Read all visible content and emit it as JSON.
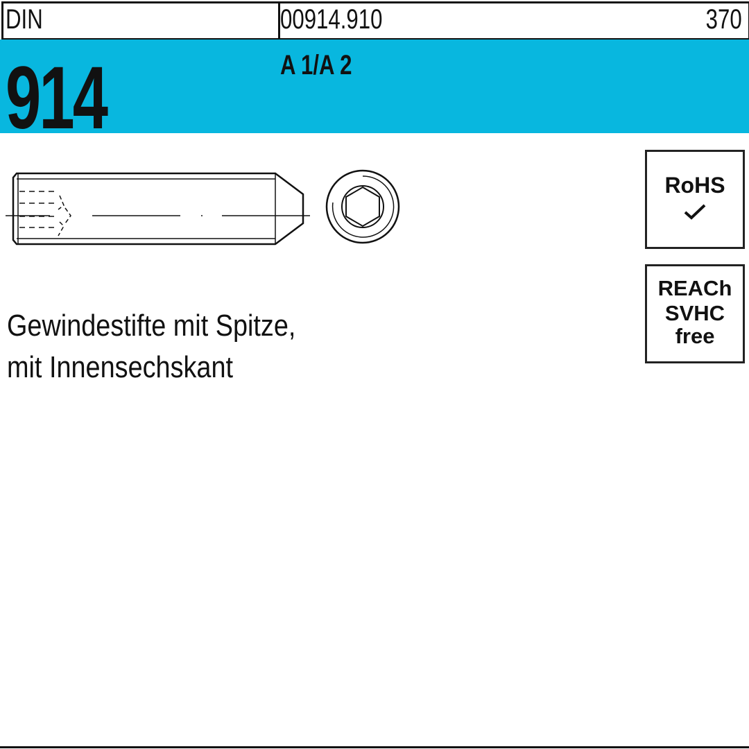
{
  "header": {
    "standard_label": "DIN",
    "article_code": "00914.910",
    "page_number": "370"
  },
  "band": {
    "din_number": "914",
    "material": "A 1/A 2",
    "color": "#08b7df"
  },
  "badges": {
    "rohs": {
      "label": "RoHS",
      "check_icon": "checkmark-icon"
    },
    "reach": {
      "line1": "REACh",
      "line2": "SVHC",
      "line3": "free"
    }
  },
  "product_title": {
    "line1": "Gewindestifte mit Spitze,",
    "line2": "mit Innensechskant"
  }
}
